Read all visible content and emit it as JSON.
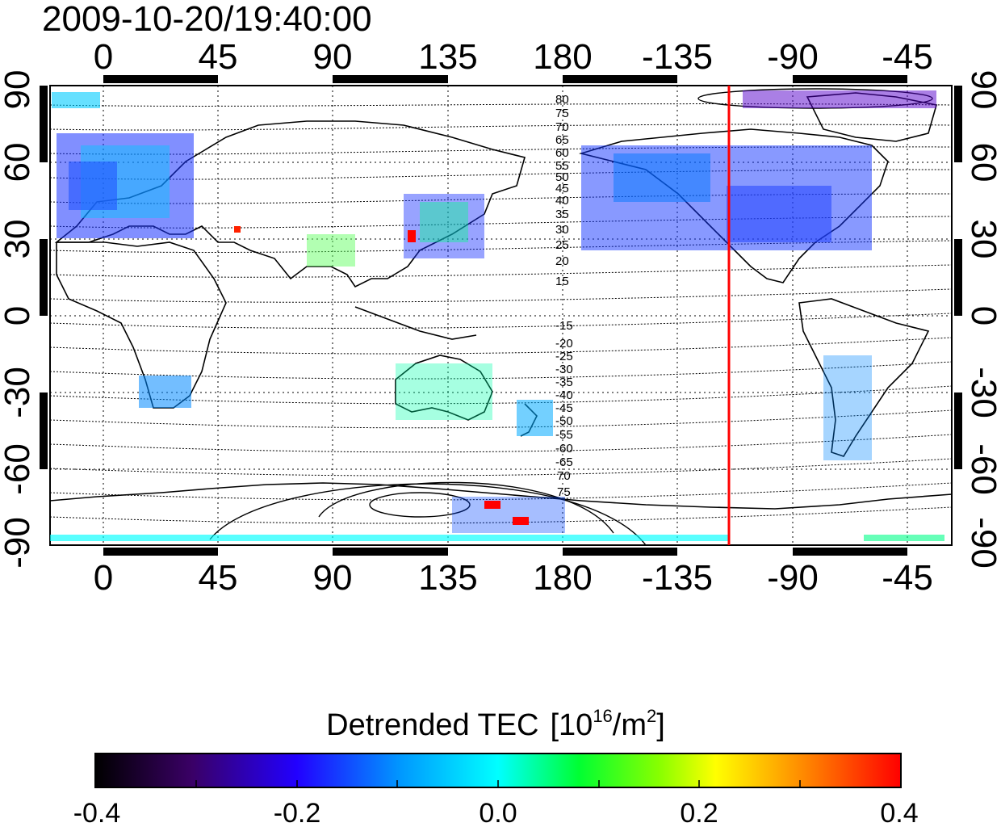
{
  "map": {
    "timestamp": "2009-10-20/19:40:00",
    "lon_ticks": [
      "0",
      "45",
      "90",
      "135",
      "180",
      "-135",
      "-90",
      "-45"
    ],
    "lat_ticks": [
      "90",
      "60",
      "30",
      "0",
      "-30",
      "-60",
      "-90"
    ],
    "contour_labels_north": [
      "80",
      "75",
      "70",
      "65",
      "60",
      "55",
      "50",
      "45",
      "40",
      "35",
      "30",
      "25",
      "20",
      "15"
    ],
    "contour_labels_south": [
      "-15",
      "-20",
      "-25",
      "-30",
      "-35",
      "-40",
      "-45",
      "-50",
      "-55",
      "-60",
      "-65",
      "70",
      "75"
    ],
    "terminator_color": "#ff0000"
  },
  "colorbar": {
    "title": "Detrended TEC",
    "unit_prefix": "[10",
    "unit_exp1": "16",
    "unit_mid": "/m",
    "unit_exp2": "2",
    "unit_suffix": "]",
    "tick_labels": [
      "-0.4",
      "-0.2",
      "0.0",
      "0.2",
      "0.4"
    ],
    "range": [
      -0.4,
      0.4
    ],
    "colors": [
      "#000000",
      "#3a0066",
      "#2200ff",
      "#0099ff",
      "#00ffff",
      "#00ff33",
      "#88ff00",
      "#ffff00",
      "#ff8800",
      "#ff0000"
    ]
  }
}
